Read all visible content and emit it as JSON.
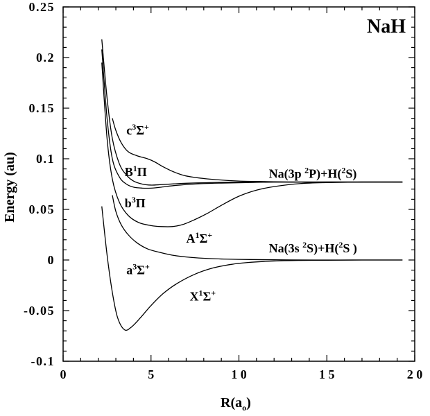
{
  "chart_data": {
    "type": "line",
    "title": "NaH",
    "xlabel": "R(a",
    "xlabel_sub": "o",
    "xlabel_close": ")",
    "ylabel": "Energy (au)",
    "xlim": [
      0,
      20
    ],
    "ylim": [
      -0.1,
      0.25
    ],
    "x_ticks": [
      {
        "value": 0,
        "label": "0"
      },
      {
        "value": 5,
        "label": "5"
      },
      {
        "value": 10,
        "label": "1 0"
      },
      {
        "value": 15,
        "label": "1 5"
      },
      {
        "value": 20,
        "label": "2 0"
      }
    ],
    "y_ticks": [
      {
        "value": -0.1,
        "label": "-0.1"
      },
      {
        "value": -0.05,
        "label": "-0.05"
      },
      {
        "value": 0,
        "label": "0"
      },
      {
        "value": 0.05,
        "label": "0.05"
      },
      {
        "value": 0.1,
        "label": "0.1"
      },
      {
        "value": 0.15,
        "label": "0.15"
      },
      {
        "value": 0.2,
        "label": "0.2"
      },
      {
        "value": 0.25,
        "label": "0.25"
      }
    ],
    "series": [
      {
        "name": "X1Σ+",
        "x": [
          2.2,
          2.5,
          2.8,
          3.1,
          3.5,
          3.9,
          4.4,
          5.0,
          5.7,
          6.5,
          7.5,
          8.5,
          9.5,
          10.5,
          12,
          13.5,
          15,
          17,
          19.3
        ],
        "y": [
          0.053,
          0.005,
          -0.032,
          -0.057,
          -0.069,
          -0.066,
          -0.057,
          -0.045,
          -0.033,
          -0.023,
          -0.014,
          -0.008,
          -0.0045,
          -0.0025,
          -0.001,
          -0.0004,
          -0.0002,
          0,
          0
        ]
      },
      {
        "name": "a3Σ+",
        "x": [
          2.8,
          3.0,
          3.3,
          3.7,
          4.2,
          4.8,
          5.5,
          6.2,
          7.0,
          8.0,
          9.0,
          10.0,
          11.5,
          13,
          15,
          17,
          19.3
        ],
        "y": [
          0.064,
          0.048,
          0.035,
          0.025,
          0.017,
          0.011,
          0.0075,
          0.0048,
          0.003,
          0.0017,
          0.001,
          0.0006,
          0.0003,
          0.0001,
          0,
          0,
          0
        ]
      },
      {
        "name": "A1Σ+",
        "x": [
          2.2,
          2.5,
          2.8,
          3.2,
          3.7,
          4.3,
          5.0,
          5.6,
          6.2,
          6.8,
          7.5,
          8.2,
          9.0,
          10.0,
          11.0,
          12.0,
          13.5,
          15.0,
          17.0,
          19.3
        ],
        "y": [
          0.195,
          0.12,
          0.08,
          0.057,
          0.044,
          0.037,
          0.034,
          0.033,
          0.033,
          0.035,
          0.04,
          0.046,
          0.054,
          0.063,
          0.069,
          0.0725,
          0.0755,
          0.0765,
          0.077,
          0.077
        ]
      },
      {
        "name": "b3Π",
        "x": [
          2.2,
          2.5,
          2.8,
          3.2,
          3.6,
          4.0,
          4.5,
          5.0,
          5.6,
          6.3,
          7.0,
          8.0,
          9.0,
          10.5,
          12.0,
          14.0,
          16.0,
          19.3
        ],
        "y": [
          0.208,
          0.14,
          0.1,
          0.082,
          0.075,
          0.072,
          0.071,
          0.071,
          0.072,
          0.0735,
          0.0745,
          0.0755,
          0.076,
          0.0765,
          0.077,
          0.077,
          0.077,
          0.077
        ]
      },
      {
        "name": "B1Π",
        "x": [
          2.2,
          2.5,
          2.8,
          3.2,
          3.6,
          4.0,
          4.5,
          5.0,
          5.6,
          6.3,
          7.0,
          8.0,
          9.0,
          10.5,
          12.0,
          14.0,
          16.0,
          19.3
        ],
        "y": [
          0.218,
          0.16,
          0.12,
          0.095,
          0.084,
          0.078,
          0.075,
          0.074,
          0.0745,
          0.0752,
          0.0758,
          0.0763,
          0.0767,
          0.077,
          0.077,
          0.077,
          0.077,
          0.077
        ]
      },
      {
        "name": "c3Σ+",
        "x": [
          2.8,
          3.0,
          3.3,
          3.7,
          4.2,
          4.8,
          5.2,
          5.7,
          6.3,
          7.0,
          8.0,
          9.0,
          10.0,
          11.5,
          13.0,
          15.0,
          17.0,
          19.3
        ],
        "y": [
          0.14,
          0.128,
          0.116,
          0.107,
          0.103,
          0.1,
          0.097,
          0.092,
          0.087,
          0.083,
          0.0805,
          0.079,
          0.078,
          0.0775,
          0.077,
          0.077,
          0.077,
          0.077
        ]
      }
    ],
    "annotations": [
      {
        "text": "c",
        "sup": "3",
        "sym": "Σ",
        "sup2": "+",
        "x": 3.6,
        "y": 0.124
      },
      {
        "text": "B",
        "sup": "1",
        "sym": "Π",
        "sup2": "",
        "x": 3.5,
        "y": 0.083
      },
      {
        "text": "b",
        "sup": "3",
        "sym": "Π",
        "sup2": "",
        "x": 3.5,
        "y": 0.052
      },
      {
        "text": "A",
        "sup": "1",
        "sym": "Σ",
        "sup2": "+",
        "x": 7.0,
        "y": 0.017
      },
      {
        "text": "a",
        "sup": "3",
        "sym": "Σ",
        "sup2": "+",
        "x": 3.6,
        "y": -0.014
      },
      {
        "text": "X",
        "sup": "1",
        "sym": "Σ",
        "sup2": "+",
        "x": 7.2,
        "y": -0.04
      },
      {
        "text": "Na(3p  ",
        "sup": "2",
        "sym": "P)+H(",
        "sup2": "2",
        "tail": "S)",
        "x": 11.7,
        "y": 0.081
      },
      {
        "text": "Na(3s  ",
        "sup": "2",
        "sym": "S)+H(",
        "sup2": "2",
        "tail": "S )",
        "x": 11.7,
        "y": 0.0075
      }
    ]
  }
}
